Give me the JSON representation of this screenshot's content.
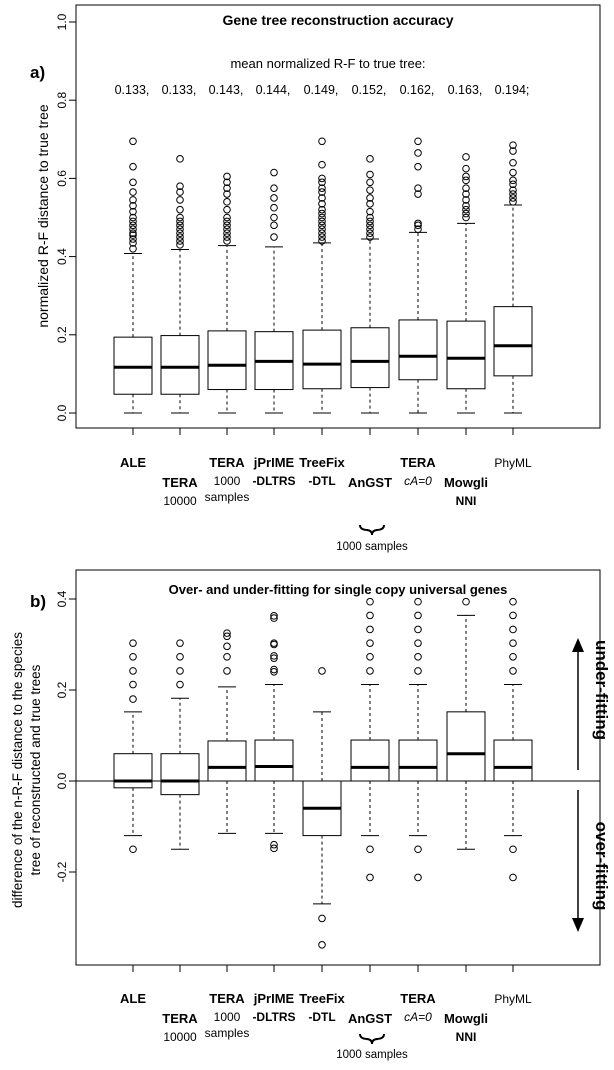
{
  "chart_data": [
    {
      "type": "box",
      "panel_label": "a)",
      "title": "Gene tree reconstruction accuracy",
      "annotation_heading": "mean normalized R-F to true tree:",
      "mean_values": [
        "0.133,",
        "0.133,",
        "0.143,",
        "0.144,",
        "0.149,",
        "0.152,",
        "0.162,",
        "0.163,",
        "0.194;"
      ],
      "ylabel": "normalized R-F distance to true tree",
      "ylim": [
        0,
        1.0
      ],
      "yticks": [
        "0.0",
        "0.2",
        "0.4",
        "0.6",
        "0.8",
        "1.0"
      ],
      "ytick_values": [
        0,
        0.2,
        0.4,
        0.6,
        0.8,
        1.0
      ],
      "categories": [
        {
          "lines": [
            {
              "text": "ALE",
              "bold": true
            }
          ]
        },
        {
          "lines": [
            {
              "text": "TERA",
              "bold": true
            },
            {
              "text": "10000",
              "bold": false
            }
          ]
        },
        {
          "lines": [
            {
              "text": "TERA",
              "bold": true
            },
            {
              "text": "1000",
              "bold": false
            },
            {
              "text": "samples",
              "bold": false
            }
          ]
        },
        {
          "lines": [
            {
              "text": "jPrIME",
              "bold": true
            },
            {
              "text": "-DLTRS",
              "bold": true
            }
          ]
        },
        {
          "lines": [
            {
              "text": "TreeFix",
              "bold": true
            },
            {
              "text": "-DTL",
              "bold": true
            }
          ]
        },
        {
          "lines": [
            {
              "text": "AnGST",
              "bold": true
            }
          ]
        },
        {
          "lines": [
            {
              "text": "TERA",
              "bold": true
            },
            {
              "text": "cA=0",
              "bold": false
            }
          ]
        },
        {
          "lines": [
            {
              "text": "Mowgli",
              "bold": true
            },
            {
              "text": "NNI",
              "bold": true
            }
          ]
        },
        {
          "lines": [
            {
              "text": "PhyML",
              "bold": false
            }
          ]
        }
      ],
      "group_label": "1000 samples",
      "boxes": [
        {
          "whisker_low": 0,
          "q1": 0.048,
          "median": 0.117,
          "q3": 0.194,
          "whisker_high": 0.408,
          "outliers": [
            0.42,
            0.435,
            0.445,
            0.455,
            0.46,
            0.47,
            0.48,
            0.49,
            0.5,
            0.515,
            0.53,
            0.545,
            0.565,
            0.59,
            0.63,
            0.695
          ]
        },
        {
          "whisker_low": 0,
          "q1": 0.048,
          "median": 0.117,
          "q3": 0.198,
          "whisker_high": 0.418,
          "outliers": [
            0.43,
            0.44,
            0.45,
            0.46,
            0.47,
            0.48,
            0.49,
            0.5,
            0.52,
            0.545,
            0.565,
            0.58,
            0.65
          ]
        },
        {
          "whisker_low": 0,
          "q1": 0.06,
          "median": 0.122,
          "q3": 0.21,
          "whisker_high": 0.428,
          "outliers": [
            0.44,
            0.45,
            0.46,
            0.47,
            0.48,
            0.49,
            0.5,
            0.52,
            0.54,
            0.56,
            0.575,
            0.59,
            0.605
          ]
        },
        {
          "whisker_low": 0,
          "q1": 0.06,
          "median": 0.132,
          "q3": 0.208,
          "whisker_high": 0.425,
          "outliers": [
            0.45,
            0.48,
            0.5,
            0.525,
            0.55,
            0.575,
            0.615
          ]
        },
        {
          "whisker_low": 0,
          "q1": 0.062,
          "median": 0.125,
          "q3": 0.212,
          "whisker_high": 0.435,
          "outliers": [
            0.44,
            0.45,
            0.46,
            0.47,
            0.48,
            0.49,
            0.5,
            0.51,
            0.52,
            0.535,
            0.55,
            0.565,
            0.575,
            0.59,
            0.6,
            0.635,
            0.695
          ]
        },
        {
          "whisker_low": 0,
          "q1": 0.065,
          "median": 0.132,
          "q3": 0.218,
          "whisker_high": 0.445,
          "outliers": [
            0.45,
            0.46,
            0.47,
            0.48,
            0.49,
            0.5,
            0.515,
            0.535,
            0.55,
            0.57,
            0.59,
            0.61,
            0.65
          ]
        },
        {
          "whisker_low": 0,
          "q1": 0.085,
          "median": 0.145,
          "q3": 0.238,
          "whisker_high": 0.462,
          "outliers": [
            0.47,
            0.48,
            0.485,
            0.56,
            0.575,
            0.63,
            0.665,
            0.695
          ]
        },
        {
          "whisker_low": 0,
          "q1": 0.062,
          "median": 0.14,
          "q3": 0.235,
          "whisker_high": 0.485,
          "outliers": [
            0.5,
            0.51,
            0.52,
            0.53,
            0.545,
            0.56,
            0.575,
            0.595,
            0.605,
            0.625,
            0.655
          ]
        },
        {
          "whisker_low": 0,
          "q1": 0.095,
          "median": 0.172,
          "q3": 0.272,
          "whisker_high": 0.532,
          "outliers": [
            0.54,
            0.55,
            0.56,
            0.57,
            0.585,
            0.595,
            0.615,
            0.64,
            0.67,
            0.685
          ]
        }
      ]
    },
    {
      "type": "box",
      "panel_label": "b)",
      "title": "Over- and under-fitting for single copy universal genes",
      "ylabel_lines": [
        "difference of the n-R-F distance to the species",
        "tree of reconstructed and true trees"
      ],
      "ylim": [
        -0.4,
        0.45
      ],
      "yticks": [
        "-0.2",
        "0.0",
        "0.2",
        "0.4"
      ],
      "ytick_values": [
        -0.2,
        0,
        0.2,
        0.4
      ],
      "zero_line": true,
      "side_labels": {
        "upper": "under-fitting",
        "lower": "over-fitting"
      },
      "group_label": "1000 samples",
      "boxes": [
        {
          "whisker_low": -0.12,
          "q1": -0.015,
          "median": 0,
          "q3": 0.06,
          "whisker_high": 0.152,
          "outliers": [
            -0.15,
            0.18,
            0.212,
            0.242,
            0.273,
            0.303
          ]
        },
        {
          "whisker_low": -0.15,
          "q1": -0.03,
          "median": 0,
          "q3": 0.06,
          "whisker_high": 0.182,
          "outliers": [
            0.212,
            0.242,
            0.273,
            0.303
          ]
        },
        {
          "whisker_low": -0.115,
          "q1": 0,
          "median": 0.03,
          "q3": 0.088,
          "whisker_high": 0.207,
          "outliers": [
            0.242,
            0.273,
            0.296,
            0.318,
            0.325
          ]
        },
        {
          "whisker_low": -0.115,
          "q1": 0,
          "median": 0.032,
          "q3": 0.09,
          "whisker_high": 0.212,
          "outliers": [
            -0.14,
            -0.148,
            0.24,
            0.245,
            0.27,
            0.275,
            0.3,
            0.303,
            0.358,
            0.363
          ]
        },
        {
          "whisker_low": -0.27,
          "q1": -0.12,
          "median": -0.06,
          "q3": 0,
          "whisker_high": 0.152,
          "outliers": [
            -0.302,
            -0.36,
            0.242
          ]
        },
        {
          "whisker_low": -0.12,
          "q1": 0,
          "median": 0.03,
          "q3": 0.09,
          "whisker_high": 0.212,
          "outliers": [
            -0.15,
            -0.212,
            0.242,
            0.273,
            0.303,
            0.333,
            0.364,
            0.394
          ]
        },
        {
          "whisker_low": -0.12,
          "q1": 0,
          "median": 0.03,
          "q3": 0.09,
          "whisker_high": 0.212,
          "outliers": [
            -0.15,
            -0.212,
            0.242,
            0.273,
            0.303,
            0.333,
            0.364,
            0.394
          ]
        },
        {
          "whisker_low": -0.15,
          "q1": 0,
          "median": 0.06,
          "q3": 0.152,
          "whisker_high": 0.364,
          "outliers": [
            0.394
          ]
        },
        {
          "whisker_low": -0.12,
          "q1": 0,
          "median": 0.03,
          "q3": 0.09,
          "whisker_high": 0.212,
          "outliers": [
            -0.15,
            -0.212,
            0.242,
            0.273,
            0.303,
            0.333,
            0.364,
            0.394
          ]
        }
      ]
    }
  ]
}
